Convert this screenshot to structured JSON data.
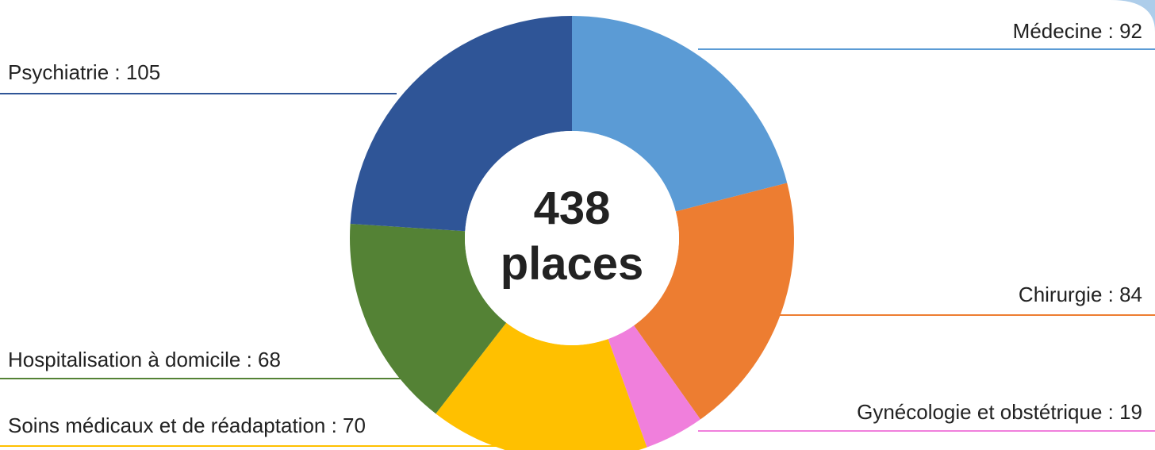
{
  "chart_data": {
    "type": "donut",
    "center_value": 438,
    "center_label": "places",
    "values": [
      92,
      84,
      19,
      70,
      68,
      105
    ],
    "value_labels": [
      "Médecine : 92",
      "Chirurgie : 84",
      "Gynécologie et obstétrique : 19",
      "Soins médicaux et de réadaptation : 70",
      "Hospitalisation à domicile : 68",
      "Psychiatrie : 105"
    ],
    "colors": [
      "#5b9bd5",
      "#ed7d31",
      "#f07fdc",
      "#ffc000",
      "#548235",
      "#2f5597"
    ]
  }
}
